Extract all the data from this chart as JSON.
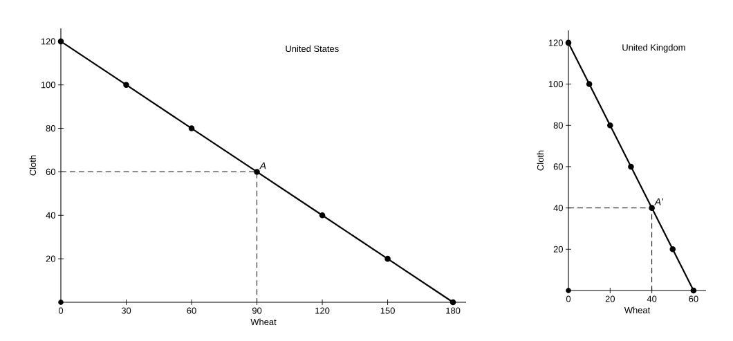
{
  "chart_data": [
    {
      "type": "line",
      "title": "United States",
      "xlabel": "Wheat",
      "ylabel": "Cloth",
      "xlim": [
        0,
        186
      ],
      "ylim": [
        0,
        126
      ],
      "xticks": [
        0,
        30,
        60,
        90,
        120,
        150,
        180
      ],
      "yticks": [
        20,
        40,
        60,
        80,
        100,
        120
      ],
      "marker": "circle",
      "line_style": "solid",
      "series": [
        {
          "color": "#000000",
          "x": [
            0,
            30,
            60,
            90,
            120,
            150,
            180
          ],
          "values": [
            120,
            100,
            80,
            60,
            40,
            20,
            0
          ]
        },
        {
          "type": "scatter",
          "color": "#000000",
          "x": [
            0
          ],
          "values": [
            0
          ]
        },
        {
          "color": "#000000",
          "marker": "none",
          "line_style": "dashed",
          "x": [
            0,
            90,
            90
          ],
          "values": [
            60,
            60,
            0
          ]
        }
      ],
      "annotations": [
        {
          "text": "A",
          "x": 90,
          "y": 60
        }
      ]
    },
    {
      "type": "line",
      "title": "United Kingdom",
      "xlabel": "Wheat",
      "ylabel": "Cloth",
      "xlim": [
        0,
        66
      ],
      "ylim": [
        0,
        126
      ],
      "xticks": [
        0,
        20,
        40,
        60
      ],
      "yticks": [
        20,
        40,
        60,
        80,
        100,
        120
      ],
      "marker": "circle",
      "line_style": "solid",
      "series": [
        {
          "color": "#000000",
          "x": [
            0,
            10,
            20,
            30,
            40,
            50,
            60
          ],
          "values": [
            120,
            100,
            80,
            60,
            40,
            20,
            0
          ]
        },
        {
          "type": "scatter",
          "color": "#000000",
          "x": [
            0
          ],
          "values": [
            0
          ]
        },
        {
          "color": "#000000",
          "marker": "none",
          "line_style": "dashed",
          "x": [
            0,
            40,
            40
          ],
          "values": [
            40,
            40,
            0
          ]
        }
      ],
      "annotations": [
        {
          "text": "A'",
          "x": 40,
          "y": 40
        }
      ]
    }
  ]
}
